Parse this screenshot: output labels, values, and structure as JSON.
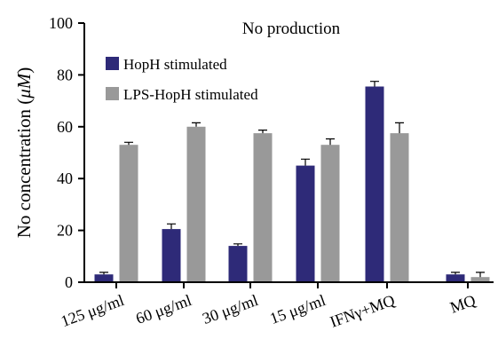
{
  "chart_data": {
    "type": "bar",
    "title": "No production",
    "ylabel": "No concentration (μM)",
    "ylabel_prefix": "No concentration (",
    "ylabel_unit": "μM",
    "ylabel_suffix": ")",
    "xlabel": "",
    "ylim": [
      0,
      100
    ],
    "yticks": [
      "0",
      "20",
      "40",
      "60",
      "80",
      "100"
    ],
    "categories": [
      "125 μg/ml",
      "60 μg/ml",
      "30 μg/ml",
      "15 μg/ml",
      "IFNγ+MQ",
      "MQ"
    ],
    "series": [
      {
        "name": "HopH stimulated",
        "color": "#2e2a78",
        "values": [
          3,
          20.5,
          14,
          45,
          75.5,
          3
        ],
        "errors": [
          0.8,
          2,
          0.8,
          2.5,
          2,
          0.8
        ]
      },
      {
        "name": "LPS-HopH stimulated",
        "color": "#999999",
        "values": [
          53,
          60,
          57.5,
          53,
          57.5,
          2
        ],
        "errors": [
          1,
          1.5,
          1.2,
          2.3,
          4,
          1.8
        ]
      }
    ],
    "legend_position": "top-left",
    "grid": false
  }
}
